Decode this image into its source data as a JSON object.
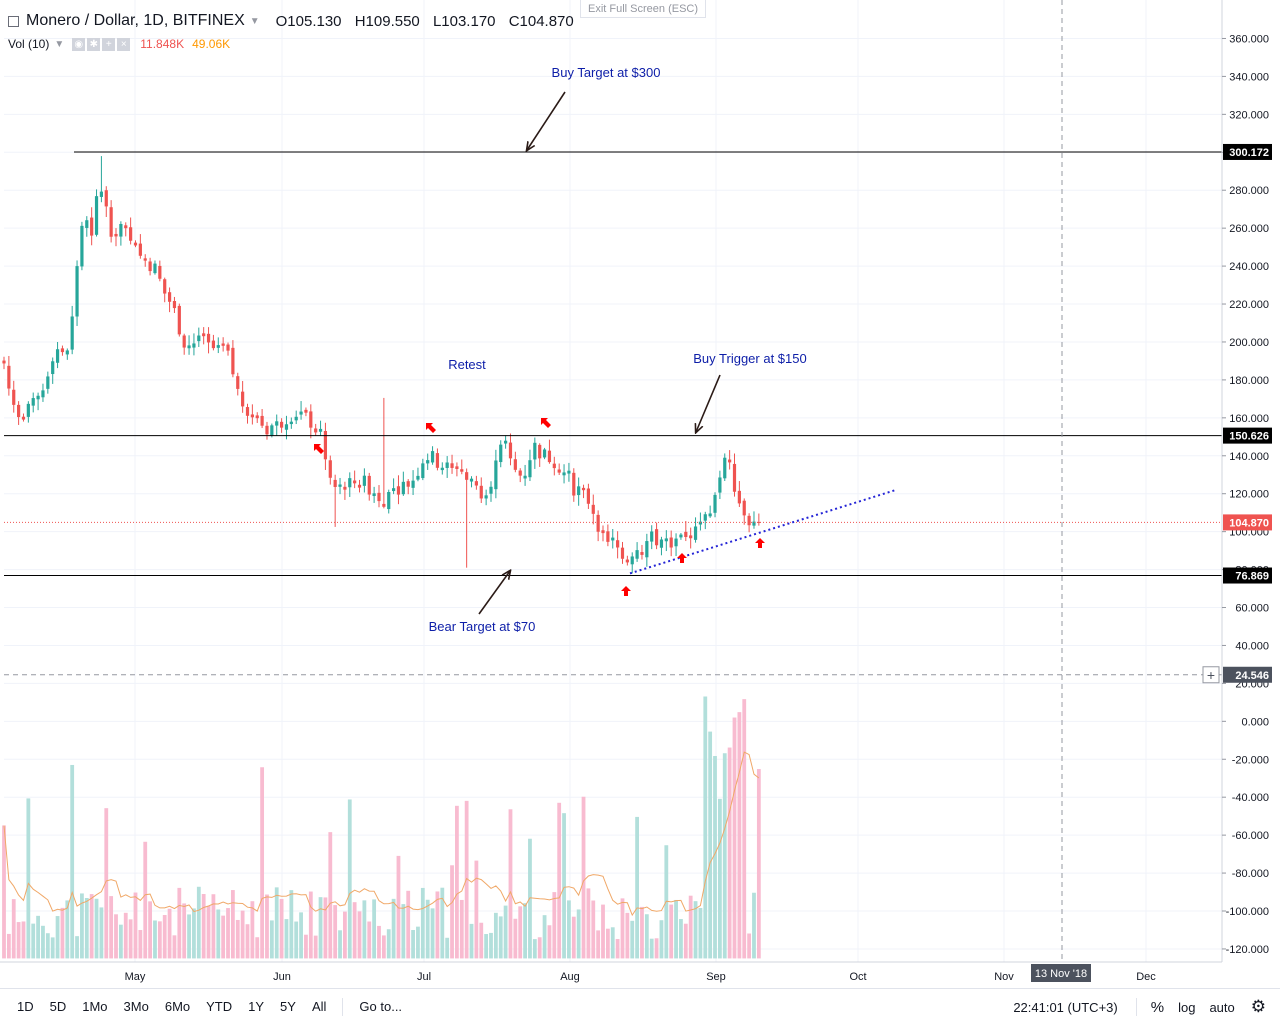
{
  "header": {
    "title": "Monero / Dollar, 1D, BITFINEX",
    "ohlc": {
      "o": "O105.130",
      "h": "H109.550",
      "l": "L103.170",
      "c": "C104.870"
    },
    "vol_label": "Vol (10)",
    "vol_value1": "11.848K",
    "vol_value2": "49.06K",
    "exit_fullscreen": "Exit Full Screen (ESC)"
  },
  "toolbar": {
    "timeframes": [
      "1D",
      "5D",
      "1Mo",
      "3Mo",
      "6Mo",
      "YTD",
      "1Y",
      "5Y",
      "All"
    ],
    "goto": "Go to...",
    "clock": "22:41:01 (UTC+3)",
    "percent": "%",
    "log": "log",
    "auto": "auto"
  },
  "chart_data": {
    "type": "candlestick",
    "symbol": "Monero / Dollar",
    "interval": "1D",
    "exchange": "BITFINEX",
    "yticks": [
      "360.000",
      "340.000",
      "320.000",
      "300.000",
      "280.000",
      "260.000",
      "240.000",
      "220.000",
      "200.000",
      "180.000",
      "160.000",
      "140.000",
      "120.000",
      "100.000",
      "80.000",
      "60.000",
      "40.000",
      "20.000",
      "0.000",
      "-20.000",
      "-40.000",
      "-60.000",
      "-80.000",
      "-100.000",
      "-120.000"
    ],
    "xticks": [
      "May",
      "Jun",
      "Jul",
      "Aug",
      "Sep",
      "Oct",
      "Nov",
      "Dec"
    ],
    "cursor_date": "13 Nov '18",
    "cursor_price": "24.546",
    "last_price": "104.870",
    "levels": [
      {
        "label": "300.172",
        "value": 300.172
      },
      {
        "label": "150.626",
        "value": 150.626
      },
      {
        "label": "76.869",
        "value": 76.869
      }
    ],
    "annotations": [
      {
        "text": "Buy Target at $300"
      },
      {
        "text": "Retest"
      },
      {
        "text": "Buy Trigger at $150"
      },
      {
        "text": "Bear Target at $70"
      }
    ],
    "grid": true,
    "colors": {
      "up": "#26a69a",
      "down": "#ef5350",
      "up_vol": "#b2dfdb",
      "down_vol": "#f8bbd0",
      "annotation": "#0d1ea8",
      "trend": "#2424d6",
      "vol_ma": "#f0a868"
    }
  }
}
